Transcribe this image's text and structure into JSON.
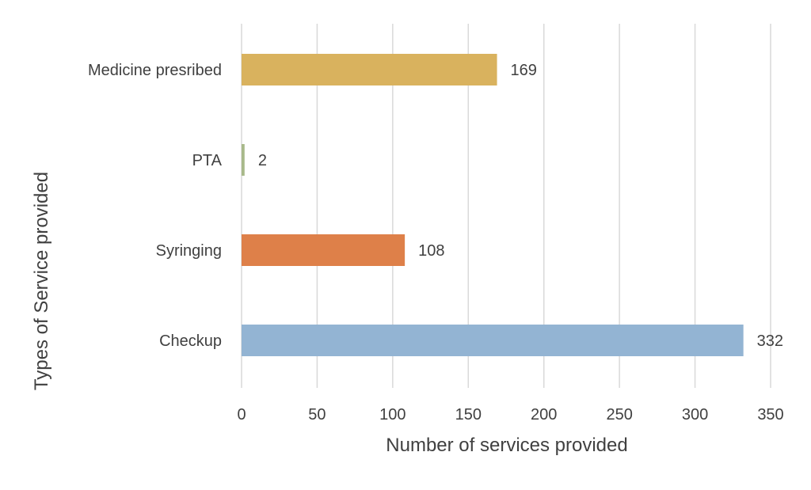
{
  "chart_data": {
    "type": "bar",
    "orientation": "horizontal",
    "title": "",
    "xlabel": "Number of services provided",
    "ylabel": "Types of Service provided",
    "xlim": [
      0,
      350
    ],
    "xticks": [
      "0",
      "50",
      "100",
      "150",
      "200",
      "250",
      "300",
      "350"
    ],
    "grid": true,
    "legend": "none",
    "categories": [
      "Medicine presribed",
      "PTA",
      "Syringing",
      "Checkup"
    ],
    "values": [
      169,
      2,
      108,
      332
    ],
    "data_labels": [
      "169",
      "2",
      "108",
      "332"
    ],
    "colors": [
      "#D9B25E",
      "#A8B98A",
      "#DE8049",
      "#93B4D3"
    ]
  }
}
